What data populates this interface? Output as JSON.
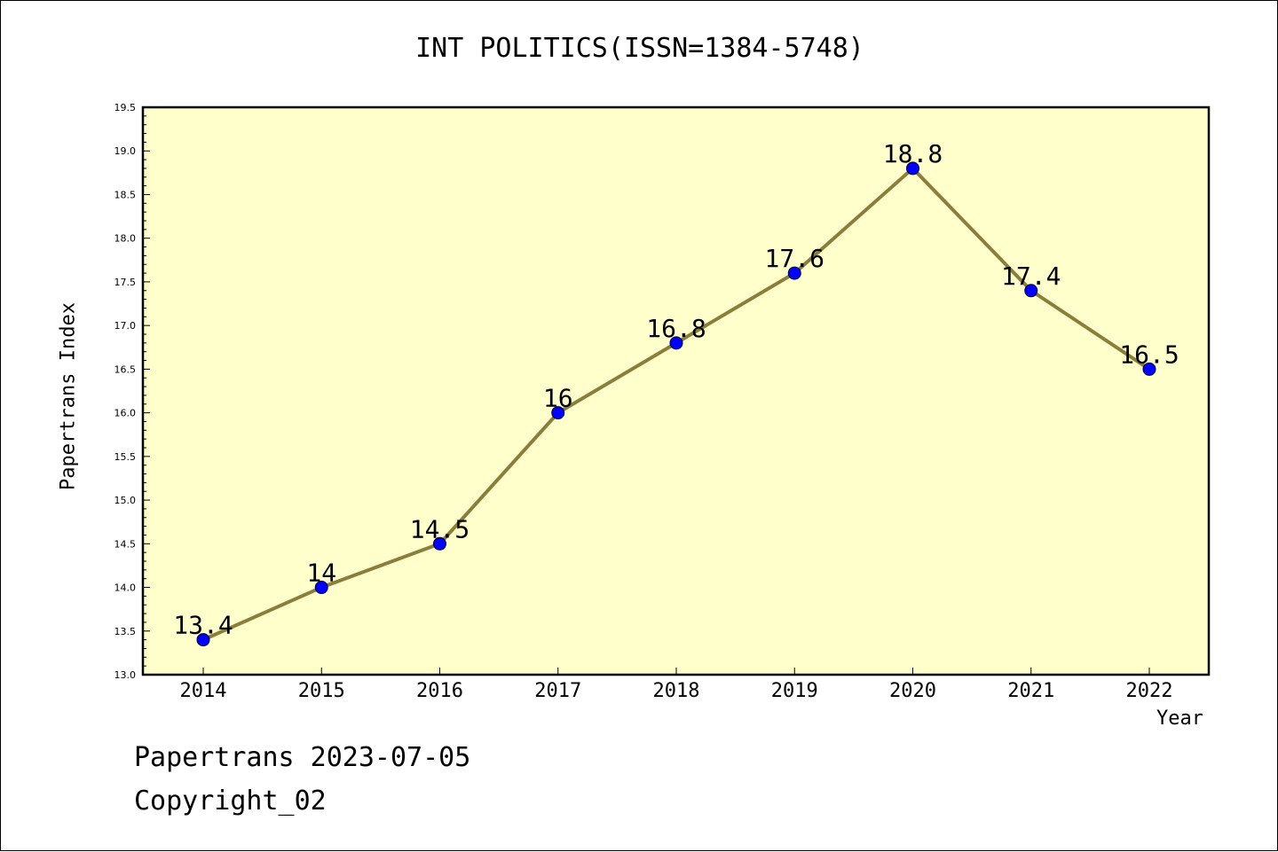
{
  "chart_data": {
    "type": "line",
    "title": "INT POLITICS(ISSN=1384-5748)",
    "xlabel": "Year",
    "ylabel": "Papertrans Index",
    "categories": [
      "2014",
      "2015",
      "2016",
      "2017",
      "2018",
      "2019",
      "2020",
      "2021",
      "2022"
    ],
    "values": [
      13.4,
      14,
      14.5,
      16,
      16.8,
      17.6,
      18.8,
      17.4,
      16.5
    ],
    "data_labels": [
      "13.4",
      "14",
      "14.5",
      "16",
      "16.8",
      "17.6",
      "18.8",
      "17.4",
      "16.5"
    ],
    "ylim": [
      13.0,
      19.5
    ],
    "yticks": [
      "13.0",
      "13.5",
      "14.0",
      "14.5",
      "15.0",
      "15.5",
      "16.0",
      "16.5",
      "17.0",
      "17.5",
      "18.0",
      "18.5",
      "19.0",
      "19.5"
    ],
    "grid": false,
    "colors": {
      "plot_background": "#ffffcc",
      "line": "#8b7d3a",
      "marker": "#0000ff"
    }
  },
  "footer": {
    "line1": "Papertrans 2023-07-05",
    "line2": "Copyright_02"
  }
}
